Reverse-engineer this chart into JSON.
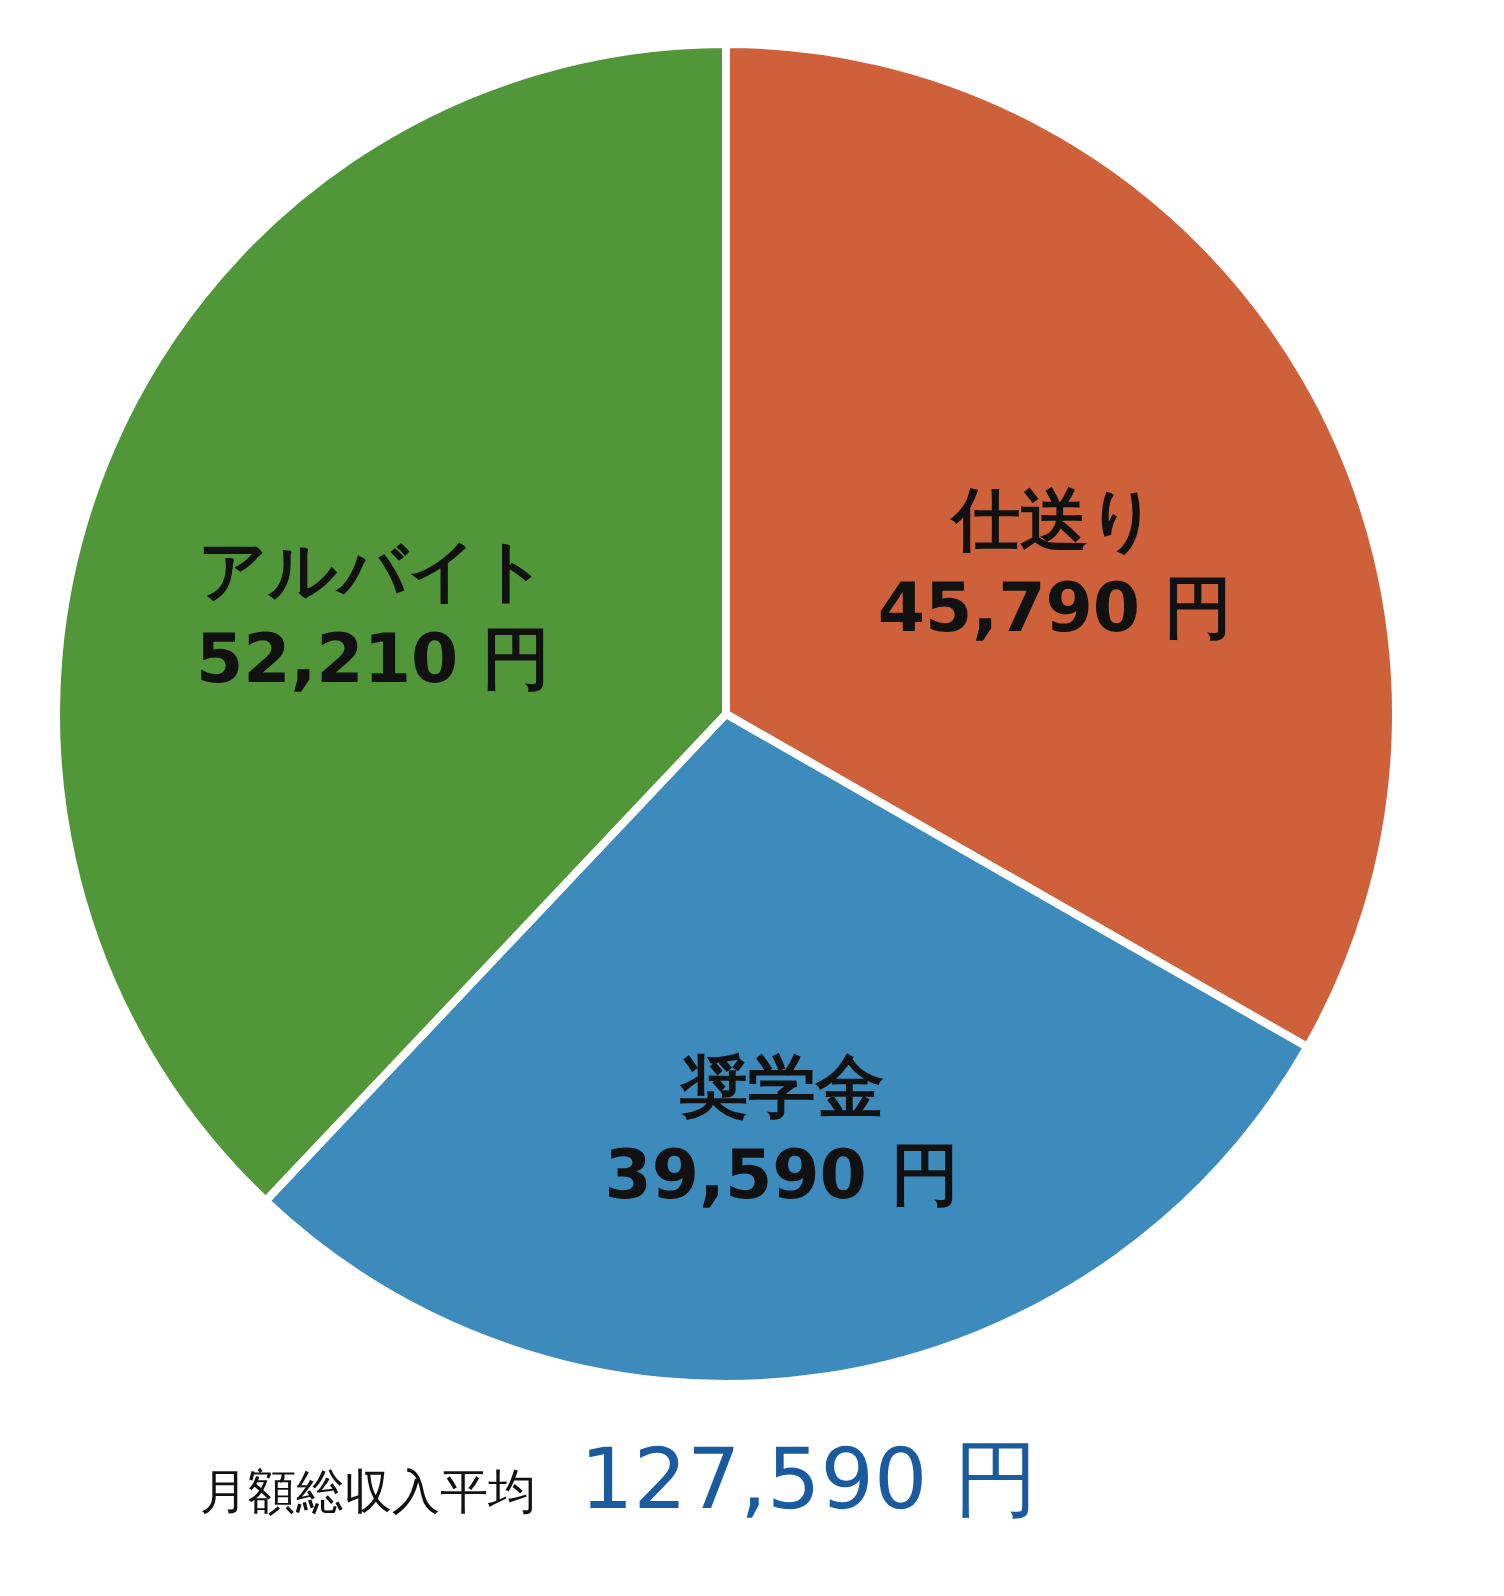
{
  "chart_data": {
    "type": "pie",
    "categories": [
      "仕送り",
      "奨学金",
      "アルバイト"
    ],
    "values": [
      45790,
      39590,
      52210
    ],
    "colors": [
      "#cf613a",
      "#3d8bbd",
      "#519638"
    ],
    "value_labels": [
      "45,790 円",
      "39,590 円",
      "52,210 円"
    ],
    "annotations": [
      "月額総収入平均",
      "127,590 円"
    ]
  }
}
